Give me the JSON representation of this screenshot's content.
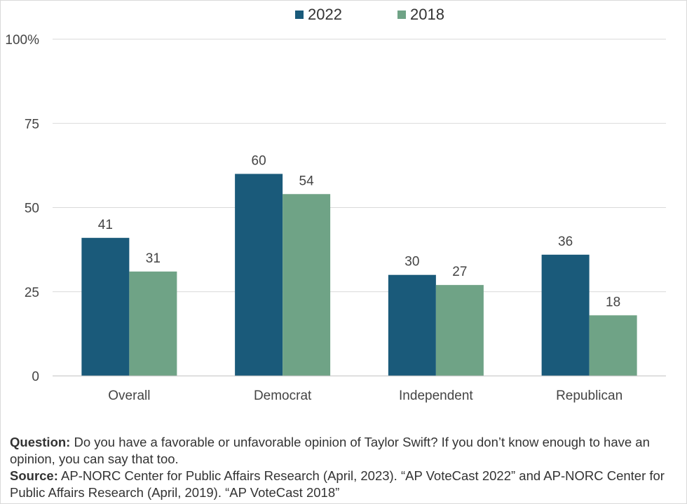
{
  "legend": {
    "items": [
      {
        "label": "2022",
        "color": "#1a5a7a"
      },
      {
        "label": "2018",
        "color": "#6fa386"
      }
    ]
  },
  "chart_data": {
    "type": "bar",
    "categories": [
      "Overall",
      "Democrat",
      "Independent",
      "Republican"
    ],
    "series": [
      {
        "name": "2022",
        "values": [
          41,
          60,
          30,
          36
        ],
        "color": "#1a5a7a"
      },
      {
        "name": "2018",
        "values": [
          31,
          54,
          27,
          18
        ],
        "color": "#6fa386"
      }
    ],
    "ylim": [
      0,
      100
    ],
    "yticks": [
      0,
      25,
      50,
      75,
      100
    ],
    "ytick_labels": [
      "0",
      "25",
      "50",
      "75",
      "100%"
    ],
    "grid": true,
    "legend_position": "top-center",
    "data_labels": true
  },
  "notes": {
    "question_label": "Question:",
    "question_text": "Do you have a favorable or unfavorable opinion of Taylor Swift? If you don’t know enough to have an opinion, you can say that too.",
    "source_label": "Source:",
    "source_text": "AP-NORC Center for Public Affairs Research (April, 2023). “AP VoteCast 2022” and AP-NORC Center for Public Affairs Research (April, 2019). “AP VoteCast 2018”"
  }
}
